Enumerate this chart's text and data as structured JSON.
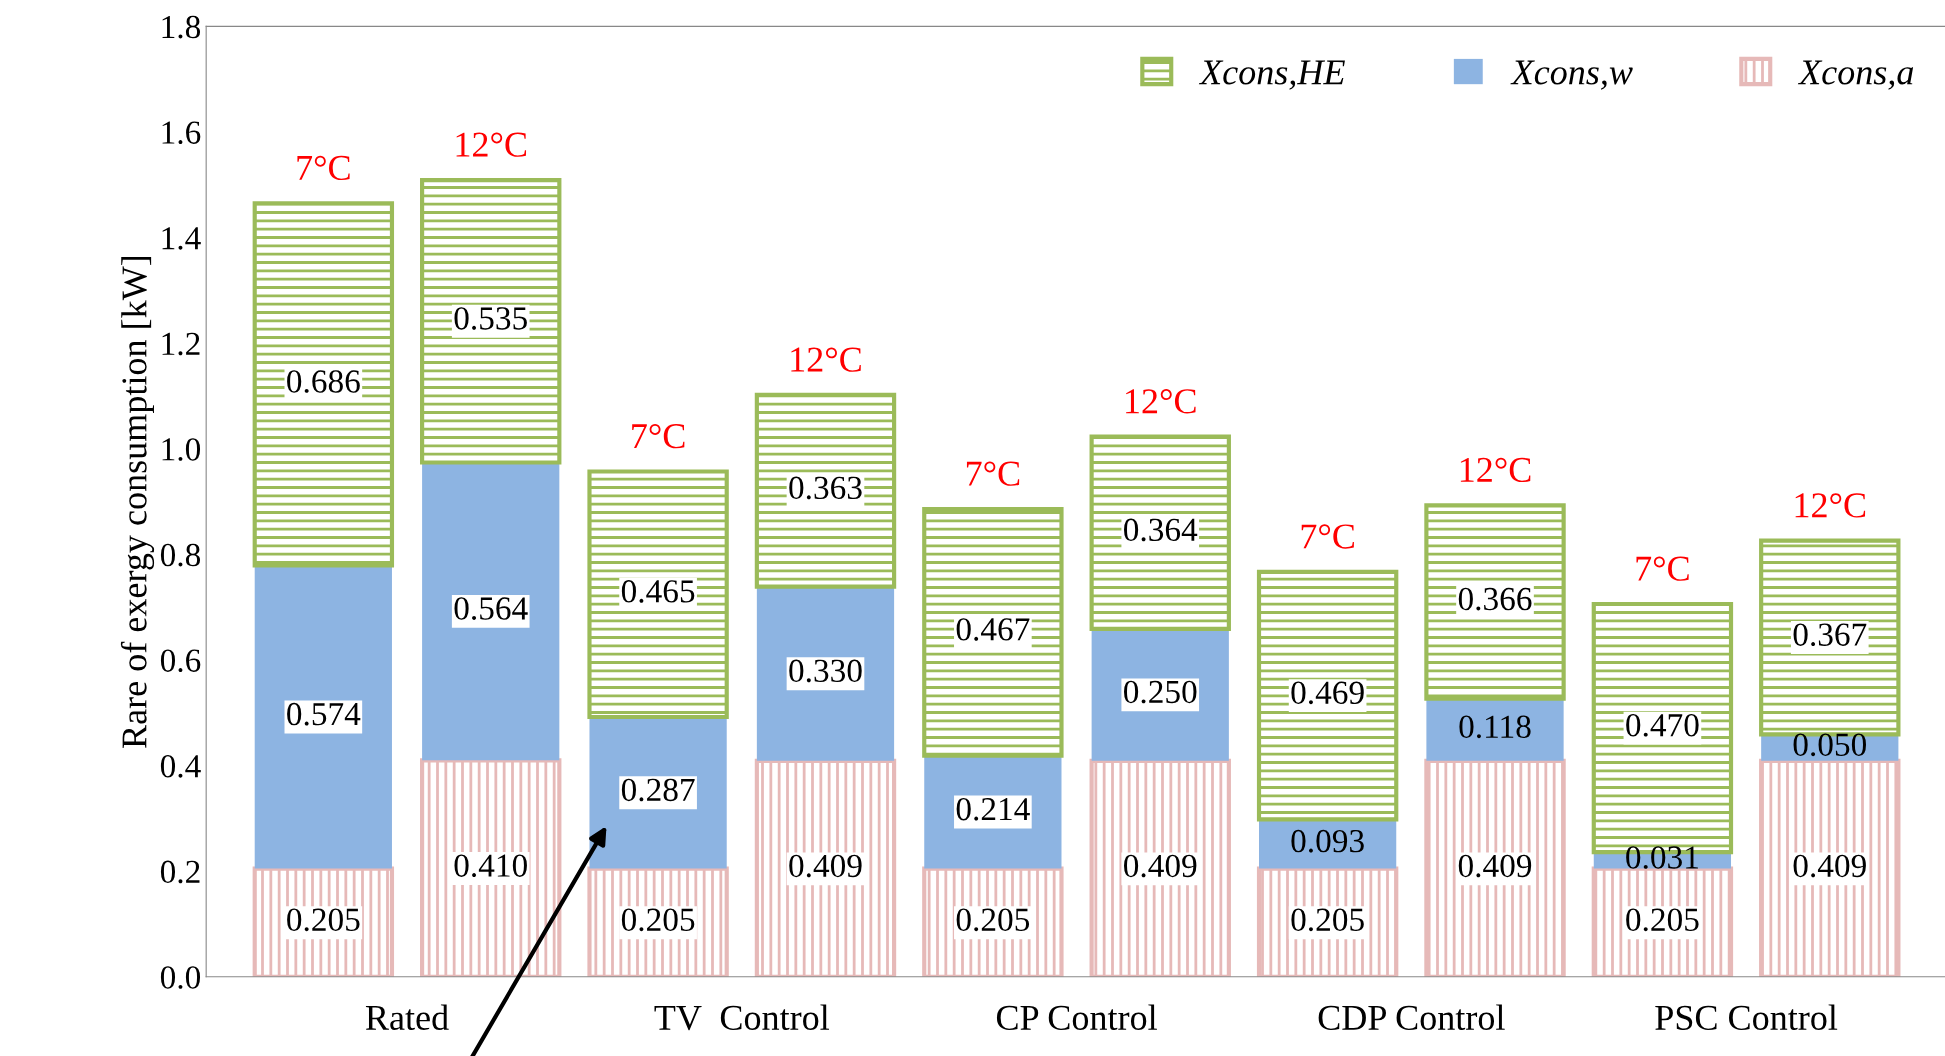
{
  "chart_data": {
    "type": "bar",
    "stacked": true,
    "ylabel": "Rare of exergy consumption [kW]",
    "categories": [
      "Rated",
      null,
      "TV  Control",
      null,
      "CP Control",
      null,
      "CDP Control",
      null,
      "PSC Control",
      null
    ],
    "series": [
      {
        "name": "Xcons,a",
        "color": "#e6b9b8",
        "values": [
          0.205,
          0.41,
          0.205,
          0.409,
          0.205,
          0.409,
          0.205,
          0.409,
          0.205,
          0.409
        ],
        "value_labels": [
          "0.205",
          "0.410",
          "0.205",
          "0.409",
          "0.205",
          "0.409",
          "0.205",
          "0.409",
          "0.205",
          "0.409"
        ]
      },
      {
        "name": "Xcons,w",
        "color": "#8db4e2",
        "values": [
          0.574,
          0.564,
          0.287,
          0.33,
          0.214,
          0.25,
          0.093,
          0.118,
          0.031,
          0.05
        ],
        "value_labels": [
          "0.574",
          "0.564",
          "0.287",
          "0.330",
          "0.214",
          "0.250",
          "0.093",
          "0.118",
          "0.031",
          "0.050"
        ]
      },
      {
        "name": "Xcons,HE",
        "color": "#9bbb59",
        "values": [
          0.686,
          0.535,
          0.465,
          0.363,
          0.467,
          0.364,
          0.469,
          0.366,
          0.47,
          0.367
        ],
        "value_labels": [
          "0.686",
          "0.535",
          "0.465",
          "0.363",
          "0.467",
          "0.364",
          "0.469",
          "0.366",
          "0.470",
          "0.367"
        ]
      }
    ],
    "annotations": [
      "7°C",
      "12°C",
      "7°C",
      "12°C",
      "7°C",
      "12°C",
      "7°C",
      "12°C",
      "7°C",
      "12°C"
    ],
    "ylim": [
      0,
      1.8
    ],
    "yticks": [
      {
        "value": 0,
        "label": "0.0"
      },
      {
        "value": 0.2,
        "label": "0.2"
      },
      {
        "value": 0.4,
        "label": "0.4"
      },
      {
        "value": 0.6,
        "label": "0.6"
      },
      {
        "value": 0.8,
        "label": "0.8"
      },
      {
        "value": 1.0,
        "label": "1.0"
      },
      {
        "value": 1.2,
        "label": "1.2"
      },
      {
        "value": 1.4,
        "label": "1.4"
      },
      {
        "value": 1.6,
        "label": "1.6"
      },
      {
        "value": 1.8,
        "label": "1.8"
      }
    ],
    "grid": false,
    "legend": "top right"
  }
}
